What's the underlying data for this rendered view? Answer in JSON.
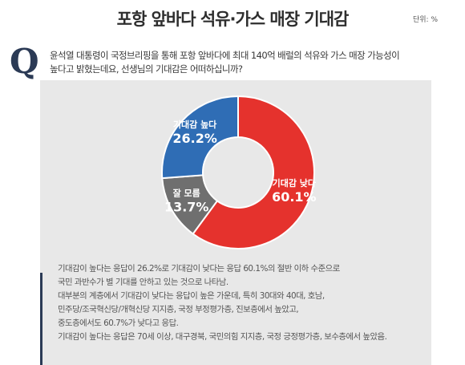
{
  "header": {
    "title": "포항 앞바다 석유·가스 매장 기대감",
    "unit": "단위: %"
  },
  "question": {
    "mark": "Q",
    "line1": "윤석열 대통령이 국정브리핑을 통해 포항 앞바다에 최대 140억 배럴의 석유와 가스 매장 가능성이",
    "line2": "높다고 밝혔는데요, 선생님의 기대감은 어떠하십니까?"
  },
  "chart_data": {
    "type": "pie",
    "donut": true,
    "slices": [
      {
        "label": "기대감 낮다",
        "value": 60.1,
        "value_text": "60.1%",
        "color": "#e5322d"
      },
      {
        "label": "잘 모름",
        "value": 13.7,
        "value_text": "13.7%",
        "color": "#6f6f6f"
      },
      {
        "label": "기대감 높다",
        "value": 26.2,
        "value_text": "26.2%",
        "color": "#2f6db5"
      }
    ]
  },
  "notes": [
    "기대감이 높다는 응답이 26.2%로 기대감이 낮다는 응답 60.1%의 절반 이하 수준으로",
    "국민 과반수가 별 기대를 안하고 있는 것으로 나타남.",
    "대부분의 계층에서 기대감이 낮다는 응답이 높은 가운데, 특히 30대와 40대, 호남,",
    "민주당/조국혁신당/개혁신당 지지층, 국정 부정평가층, 진보층에서 높았고,",
    "중도층에서도 60.7%가 낮다고 응답.",
    "기대감이 높다는 응답은 70세 이상, 대구경북, 국민의힘 지지층, 국정 긍정평가층, 보수층에서 높았음."
  ]
}
